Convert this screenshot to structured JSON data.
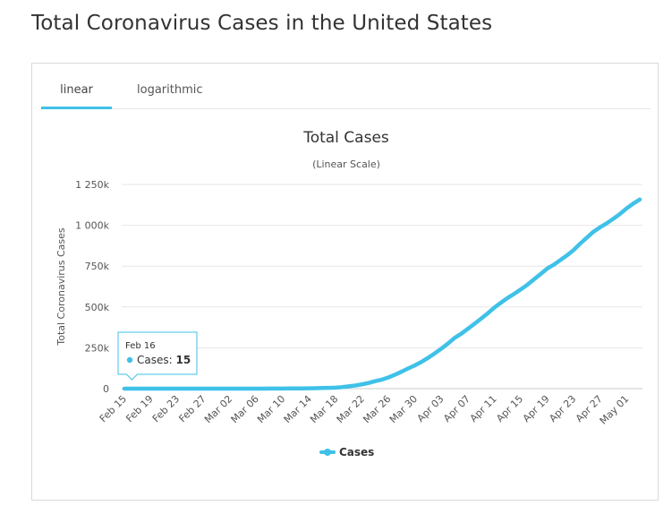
{
  "page": {
    "title": "Total Coronavirus Cases in the United States"
  },
  "tabs": [
    {
      "label": "linear",
      "active": true
    },
    {
      "label": "logarithmic",
      "active": false
    }
  ],
  "colors": {
    "series": "#3fc1e8",
    "grid": "#e6e6e6",
    "accent": "#3fc1e8"
  },
  "chart_data": {
    "type": "line",
    "title": "Total Cases",
    "subtitle": "(Linear Scale)",
    "ylabel": "Total Coronavirus Cases",
    "xlabel": "",
    "ylim": [
      0,
      1250000
    ],
    "yticks": [
      0,
      250000,
      500000,
      750000,
      1000000,
      1250000
    ],
    "ytick_labels": [
      "0",
      "250k",
      "500k",
      "750k",
      "1 000k",
      "1 250k"
    ],
    "x_categories": [
      "Feb 15",
      "Feb 16",
      "Feb 17",
      "Feb 18",
      "Feb 19",
      "Feb 20",
      "Feb 21",
      "Feb 22",
      "Feb 23",
      "Feb 24",
      "Feb 25",
      "Feb 26",
      "Feb 27",
      "Feb 28",
      "Feb 29",
      "Mar 01",
      "Mar 02",
      "Mar 03",
      "Mar 04",
      "Mar 05",
      "Mar 06",
      "Mar 07",
      "Mar 08",
      "Mar 09",
      "Mar 10",
      "Mar 11",
      "Mar 12",
      "Mar 13",
      "Mar 14",
      "Mar 15",
      "Mar 16",
      "Mar 17",
      "Mar 18",
      "Mar 19",
      "Mar 20",
      "Mar 21",
      "Mar 22",
      "Mar 23",
      "Mar 24",
      "Mar 25",
      "Mar 26",
      "Mar 27",
      "Mar 28",
      "Mar 29",
      "Mar 30",
      "Mar 31",
      "Apr 01",
      "Apr 02",
      "Apr 03",
      "Apr 04",
      "Apr 05",
      "Apr 06",
      "Apr 07",
      "Apr 08",
      "Apr 09",
      "Apr 10",
      "Apr 11",
      "Apr 12",
      "Apr 13",
      "Apr 14",
      "Apr 15",
      "Apr 16",
      "Apr 17",
      "Apr 18",
      "Apr 19",
      "Apr 20",
      "Apr 21",
      "Apr 22",
      "Apr 23",
      "Apr 24",
      "Apr 25",
      "Apr 26",
      "Apr 27",
      "Apr 28",
      "Apr 29",
      "Apr 30",
      "May 01",
      "May 02",
      "May 03"
    ],
    "xtick_labels": [
      "Feb 15",
      "Feb 19",
      "Feb 23",
      "Feb 27",
      "Mar 02",
      "Mar 06",
      "Mar 10",
      "Mar 14",
      "Mar 18",
      "Mar 22",
      "Mar 26",
      "Mar 30",
      "Apr 03",
      "Apr 07",
      "Apr 11",
      "Apr 15",
      "Apr 19",
      "Apr 23",
      "Apr 27",
      "May 01"
    ],
    "grid": true,
    "legend_position": "bottom-center",
    "series": [
      {
        "name": "Cases",
        "values": [
          15,
          15,
          15,
          15,
          15,
          15,
          15,
          15,
          15,
          15,
          15,
          15,
          16,
          16,
          24,
          30,
          53,
          80,
          100,
          160,
          233,
          338,
          433,
          554,
          754,
          1025,
          1312,
          1663,
          2174,
          2951,
          3774,
          4661,
          6427,
          9415,
          14250,
          19624,
          26747,
          35206,
          46442,
          55231,
          69194,
          85991,
          104686,
          124665,
          143025,
          164620,
          189618,
          216721,
          245540,
          277205,
          311357,
          336673,
          366667,
          397505,
          429052,
          461437,
          496535,
          526396,
          555313,
          580619,
          607670,
          636350,
          669272,
          701653,
          735366,
          759086,
          787752,
          816385,
          849092,
          888881,
          925038,
          960896,
          988197,
          1012582,
          1039909,
          1069424,
          1103461,
          1132539,
          1158040
        ]
      }
    ],
    "tooltip": {
      "date": "Feb 16",
      "series_label": "Cases",
      "value": "15"
    }
  }
}
